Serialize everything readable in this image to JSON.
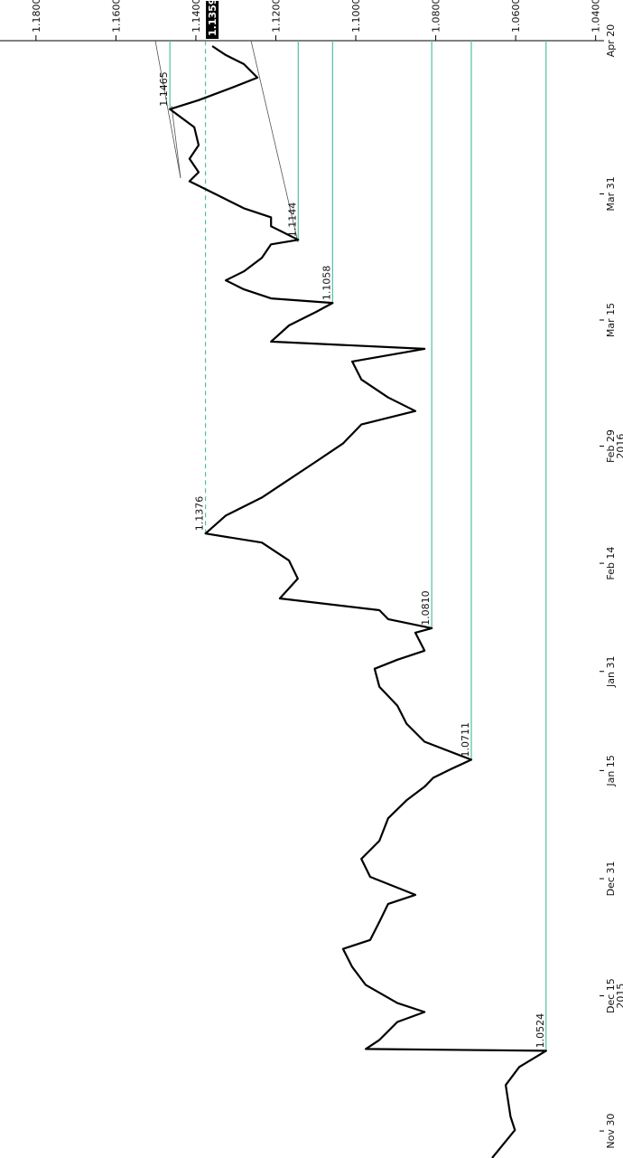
{
  "chart_data": {
    "type": "line",
    "xlim": [
      0,
      124
    ],
    "ylim": [
      1.189,
      1.0388
    ],
    "yticks": [
      {
        "value": 1.18,
        "label": "1.1800"
      },
      {
        "value": 1.16,
        "label": "1.1600"
      },
      {
        "value": 1.14,
        "label": "1.1400"
      },
      {
        "value": 1.12,
        "label": "1.1200"
      },
      {
        "value": 1.1,
        "label": "1.1000"
      },
      {
        "value": 1.08,
        "label": "1.0800"
      },
      {
        "value": 1.06,
        "label": "1.0600"
      },
      {
        "value": 1.04,
        "label": "1.0400"
      }
    ],
    "xticks": [
      {
        "value": 3,
        "label": "Nov 30"
      },
      {
        "value": 18,
        "label": "Dec 15\n2015"
      },
      {
        "value": 31,
        "label": "Dec 31"
      },
      {
        "value": 43,
        "label": "Jan 15"
      },
      {
        "value": 54,
        "label": "Jan 31"
      },
      {
        "value": 66,
        "label": "Feb 14"
      },
      {
        "value": 79,
        "label": "Feb 29\n2016"
      },
      {
        "value": 93,
        "label": "Mar 15"
      },
      {
        "value": 107,
        "label": "Mar 31"
      },
      {
        "value": 124,
        "label": "Apr 20"
      }
    ],
    "x": [
      0,
      3.1,
      4.6,
      8.1,
      10.1,
      11.9,
      12.1,
      13.1,
      15.1,
      16.2,
      17.2,
      19.2,
      21.2,
      23.2,
      24.2,
      26.2,
      28.2,
      29.2,
      31.2,
      33.2,
      35.2,
      37.7,
      39.7,
      41.2,
      42.2,
      43.2,
      44.2,
      46.2,
      48.2,
      50.2,
      52.3,
      54.3,
      55.3,
      56.3,
      58.3,
      58.8,
      59.8,
      60.8,
      62.1,
      64.3,
      66.3,
      68.3,
      69.3,
      71.3,
      73.3,
      75.3,
      77.3,
      79.3,
      81.4,
      82.9,
      84.4,
      86.4,
      88.4,
      89.8,
      90.6,
      92.4,
      93.9,
      94.9,
      95.4,
      96.4,
      97.4,
      98.4,
      99.9,
      101.4,
      101.9,
      103.4,
      104.4,
      105.4,
      106.9,
      108.4,
      109.4,
      110.9,
      112.4,
      114.4,
      116.4,
      117.4,
      118.9,
      119.9,
      121.4,
      122.4,
      123.4
    ],
    "series": [
      {
        "color": "#000000",
        "values": [
          1.0659,
          1.0602,
          1.0613,
          1.0625,
          1.0591,
          1.0524,
          1.0975,
          1.0941,
          1.0896,
          1.0828,
          1.0896,
          1.0975,
          1.1009,
          1.1032,
          1.0964,
          1.0941,
          1.0919,
          1.0851,
          1.0964,
          1.0986,
          1.0941,
          1.0919,
          1.0873,
          1.0828,
          1.0806,
          1.076,
          1.0711,
          1.0828,
          1.0873,
          1.0896,
          1.0941,
          1.0953,
          1.0896,
          1.0828,
          1.0851,
          1.081,
          1.0919,
          1.0941,
          1.119,
          1.1145,
          1.1167,
          1.1235,
          1.1376,
          1.1325,
          1.1235,
          1.1167,
          1.1099,
          1.1032,
          1.0986,
          1.0851,
          1.0919,
          1.0986,
          1.1009,
          1.0828,
          1.1212,
          1.1167,
          1.1099,
          1.1058,
          1.1212,
          1.128,
          1.1325,
          1.128,
          1.1235,
          1.1212,
          1.1144,
          1.1212,
          1.1212,
          1.128,
          1.1348,
          1.1416,
          1.1393,
          1.1416,
          1.1393,
          1.1404,
          1.1465,
          1.1393,
          1.1303,
          1.1246,
          1.128,
          1.1325,
          1.1359
        ]
      }
    ],
    "annotations": [
      {
        "x": 11.9,
        "value": 1.0524,
        "style": "solid"
      },
      {
        "x": 44.2,
        "value": 1.0711,
        "style": "solid"
      },
      {
        "x": 58.8,
        "value": 1.081,
        "label": "1.0810",
        "style": "solid"
      },
      {
        "x": 69.3,
        "value": 1.1376,
        "style": "dashed"
      },
      {
        "x": 94.9,
        "value": 1.1058,
        "style": "solid"
      },
      {
        "x": 101.9,
        "value": 1.1144,
        "style": "solid"
      },
      {
        "x": 116.4,
        "value": 1.1465,
        "style": "solid"
      }
    ],
    "annotation_color": "#4fc1a6",
    "last_value": 1.1359
  }
}
